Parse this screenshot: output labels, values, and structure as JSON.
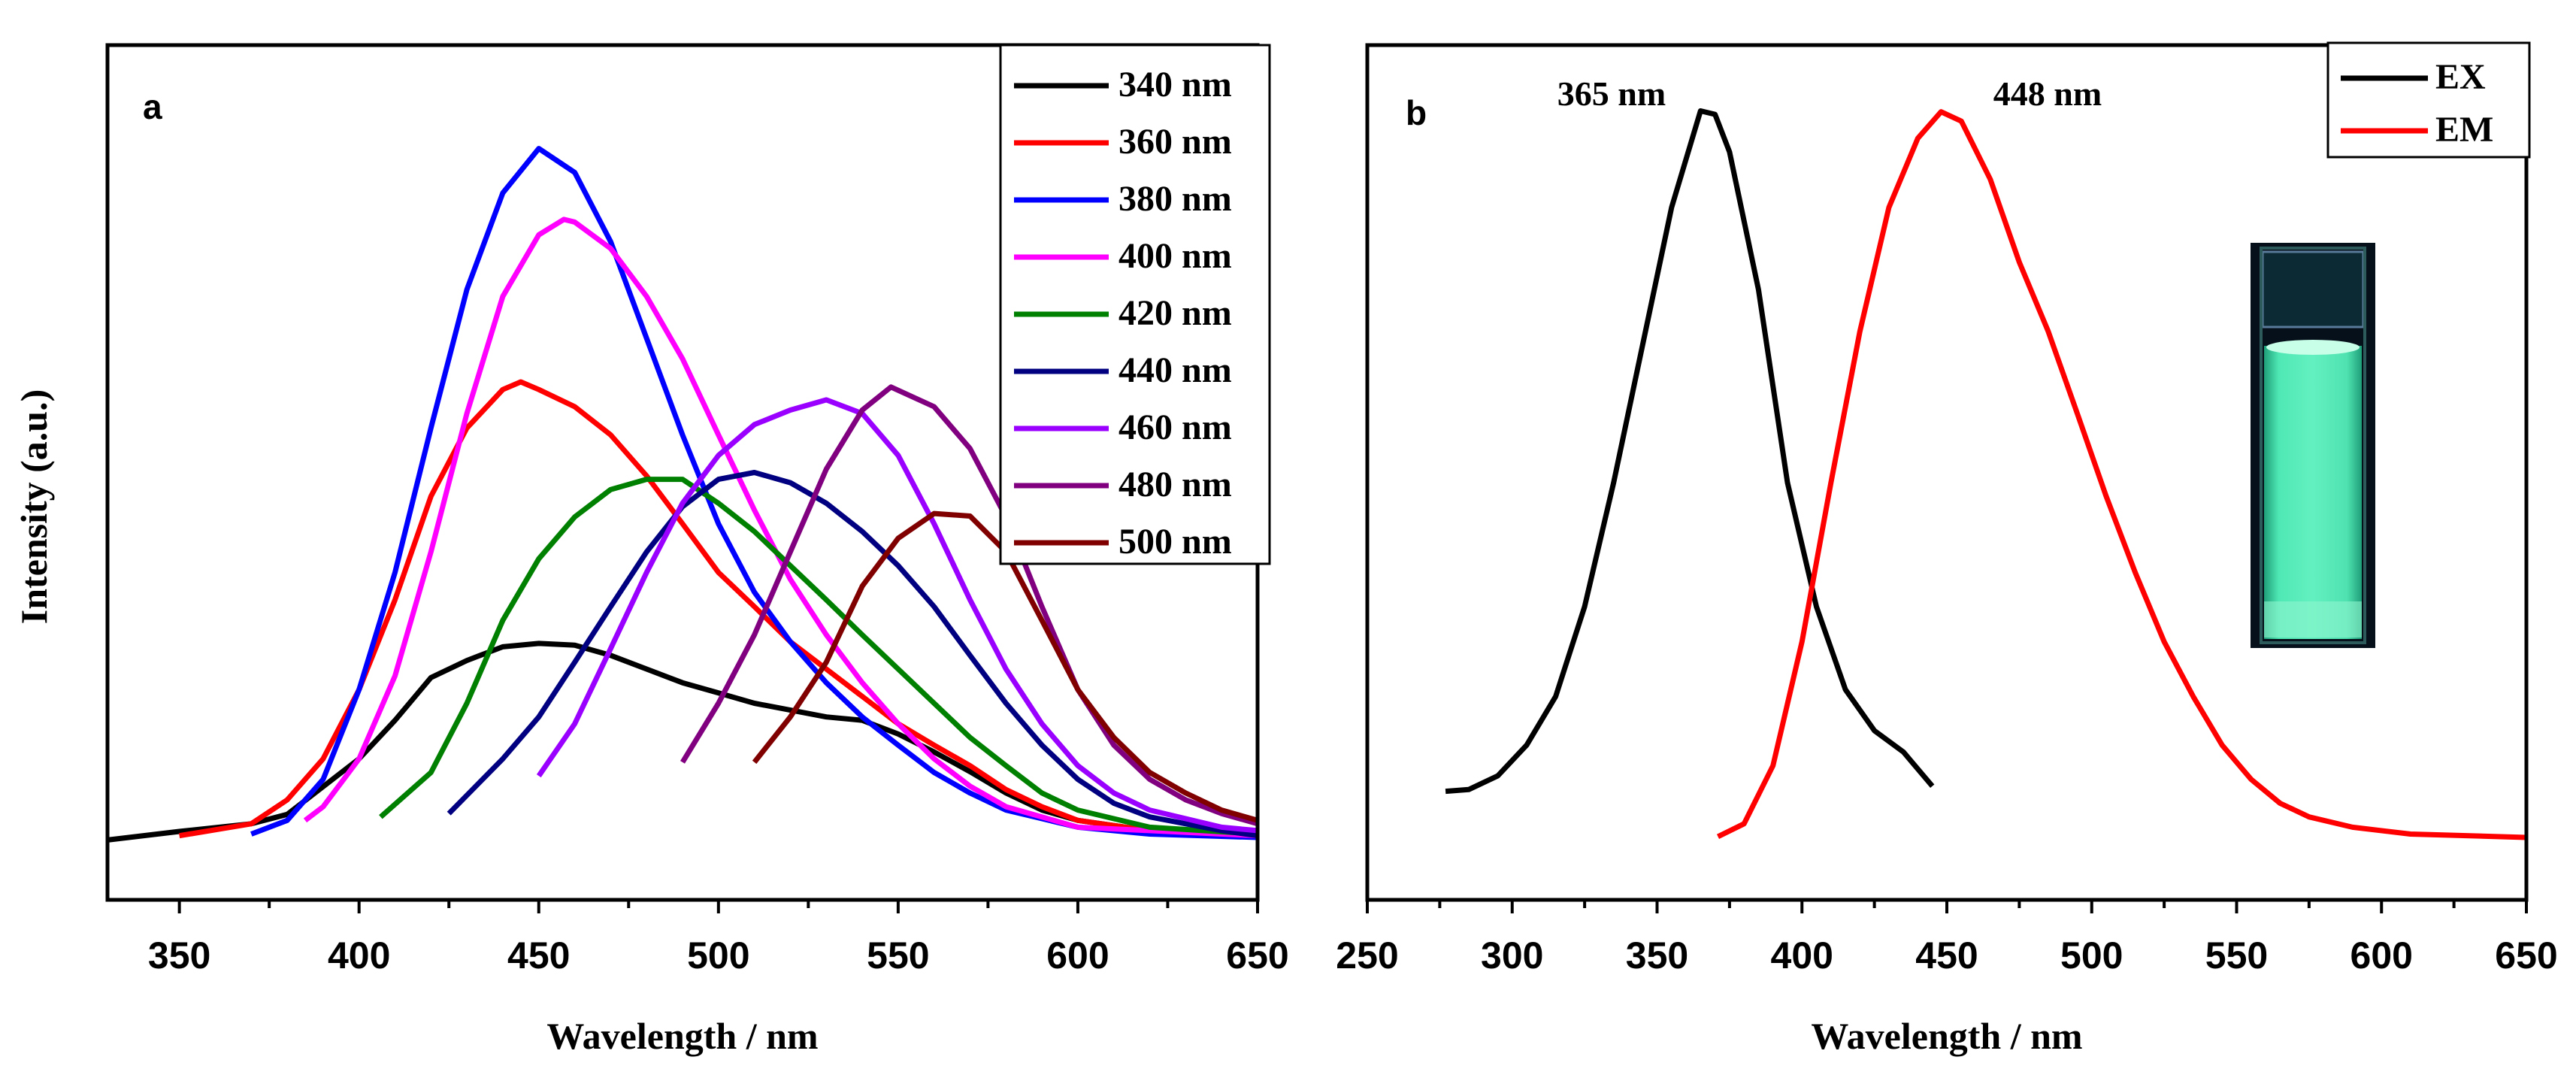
{
  "chart_data": [
    {
      "type": "line",
      "panel_label": "a",
      "xlabel": "Wavelength / nm",
      "ylabel": "Intensity (a.u.)",
      "xlim": [
        330,
        650
      ],
      "ylim": [
        0,
        1
      ],
      "xticks": [
        350,
        400,
        450,
        500,
        550,
        600,
        650
      ],
      "legend_position": "top-right",
      "series": [
        {
          "name": "340 nm",
          "color": "#000000",
          "x": [
            330,
            350,
            370,
            380,
            400,
            410,
            420,
            430,
            440,
            450,
            460,
            470,
            480,
            490,
            500,
            510,
            520,
            530,
            540,
            550,
            560,
            570,
            580,
            590,
            600,
            620,
            640,
            650
          ],
          "y": [
            0.07,
            0.08,
            0.089,
            0.1,
            0.165,
            0.21,
            0.26,
            0.28,
            0.296,
            0.3,
            0.298,
            0.286,
            0.27,
            0.254,
            0.242,
            0.23,
            0.222,
            0.214,
            0.21,
            0.194,
            0.173,
            0.15,
            0.125,
            0.105,
            0.093,
            0.081,
            0.077,
            0.075
          ]
        },
        {
          "name": "360 nm",
          "color": "#ff0000",
          "x": [
            350,
            370,
            380,
            390,
            400,
            410,
            420,
            430,
            440,
            445,
            450,
            460,
            470,
            480,
            490,
            500,
            510,
            520,
            530,
            540,
            550,
            560,
            570,
            580,
            590,
            600,
            620,
            650
          ],
          "y": [
            0.075,
            0.089,
            0.117,
            0.165,
            0.246,
            0.351,
            0.472,
            0.552,
            0.597,
            0.606,
            0.597,
            0.577,
            0.544,
            0.496,
            0.44,
            0.383,
            0.343,
            0.302,
            0.27,
            0.238,
            0.206,
            0.181,
            0.157,
            0.129,
            0.109,
            0.093,
            0.081,
            0.075
          ]
        },
        {
          "name": "380 nm",
          "color": "#0000ff",
          "x": [
            370,
            380,
            390,
            400,
            410,
            420,
            430,
            440,
            450,
            460,
            470,
            480,
            490,
            500,
            510,
            520,
            530,
            540,
            550,
            560,
            570,
            580,
            600,
            620,
            650
          ],
          "y": [
            0.077,
            0.093,
            0.141,
            0.246,
            0.383,
            0.552,
            0.714,
            0.827,
            0.879,
            0.851,
            0.77,
            0.657,
            0.544,
            0.44,
            0.36,
            0.302,
            0.254,
            0.214,
            0.181,
            0.149,
            0.125,
            0.105,
            0.085,
            0.077,
            0.073
          ]
        },
        {
          "name": "400 nm",
          "color": "#ff00ff",
          "x": [
            385,
            390,
            400,
            410,
            420,
            430,
            440,
            450,
            457,
            460,
            470,
            480,
            490,
            500,
            510,
            520,
            530,
            540,
            550,
            560,
            570,
            580,
            600,
            650
          ],
          "y": [
            0.093,
            0.109,
            0.165,
            0.262,
            0.407,
            0.569,
            0.706,
            0.778,
            0.796,
            0.793,
            0.762,
            0.706,
            0.633,
            0.544,
            0.456,
            0.375,
            0.31,
            0.254,
            0.206,
            0.165,
            0.133,
            0.109,
            0.085,
            0.075
          ]
        },
        {
          "name": "420 nm",
          "color": "#008000",
          "x": [
            406,
            420,
            430,
            440,
            450,
            460,
            470,
            480,
            490,
            500,
            510,
            520,
            530,
            540,
            550,
            560,
            570,
            580,
            590,
            600,
            620,
            650
          ],
          "y": [
            0.097,
            0.149,
            0.23,
            0.327,
            0.399,
            0.448,
            0.48,
            0.492,
            0.492,
            0.464,
            0.431,
            0.391,
            0.351,
            0.31,
            0.27,
            0.23,
            0.19,
            0.157,
            0.125,
            0.105,
            0.085,
            0.077
          ]
        },
        {
          "name": "440 nm",
          "color": "#000080",
          "x": [
            425,
            440,
            450,
            460,
            470,
            480,
            490,
            500,
            510,
            520,
            530,
            540,
            550,
            560,
            570,
            580,
            590,
            600,
            610,
            620,
            640,
            650
          ],
          "y": [
            0.101,
            0.165,
            0.214,
            0.278,
            0.343,
            0.407,
            0.46,
            0.492,
            0.5,
            0.488,
            0.464,
            0.431,
            0.391,
            0.343,
            0.286,
            0.23,
            0.181,
            0.141,
            0.113,
            0.097,
            0.081,
            0.075
          ]
        },
        {
          "name": "460 nm",
          "color": "#9900ff",
          "x": [
            450,
            460,
            470,
            480,
            490,
            500,
            510,
            520,
            530,
            540,
            550,
            560,
            570,
            580,
            590,
            600,
            610,
            620,
            640,
            650
          ],
          "y": [
            0.145,
            0.206,
            0.294,
            0.383,
            0.464,
            0.52,
            0.556,
            0.573,
            0.585,
            0.569,
            0.52,
            0.44,
            0.351,
            0.27,
            0.206,
            0.157,
            0.125,
            0.105,
            0.085,
            0.081
          ]
        },
        {
          "name": "480 nm",
          "color": "#800080",
          "x": [
            490,
            500,
            510,
            520,
            530,
            540,
            548,
            560,
            570,
            580,
            590,
            600,
            610,
            620,
            630,
            640,
            650
          ],
          "y": [
            0.161,
            0.23,
            0.31,
            0.407,
            0.504,
            0.573,
            0.6,
            0.577,
            0.528,
            0.448,
            0.343,
            0.246,
            0.181,
            0.141,
            0.117,
            0.101,
            0.089
          ]
        },
        {
          "name": "500 nm",
          "color": "#800000",
          "x": [
            510,
            520,
            530,
            540,
            550,
            560,
            570,
            580,
            590,
            600,
            610,
            620,
            630,
            640,
            650
          ],
          "y": [
            0.161,
            0.214,
            0.278,
            0.367,
            0.423,
            0.452,
            0.449,
            0.407,
            0.327,
            0.246,
            0.19,
            0.149,
            0.125,
            0.105,
            0.093
          ]
        }
      ]
    },
    {
      "type": "line",
      "panel_label": "b",
      "xlabel": "Wavelength / nm",
      "ylabel": "",
      "xlim": [
        250,
        650
      ],
      "ylim": [
        0,
        1
      ],
      "xticks": [
        250,
        300,
        350,
        400,
        450,
        500,
        550,
        600,
        650
      ],
      "legend_position": "top-right",
      "annotations": [
        "365 nm",
        "448 nm"
      ],
      "series": [
        {
          "name": "EX",
          "color": "#000000",
          "x": [
            277,
            285,
            295,
            305,
            315,
            325,
            335,
            345,
            355,
            365,
            370,
            375,
            385,
            395,
            405,
            415,
            425,
            435,
            445
          ],
          "y": [
            0.127,
            0.129,
            0.145,
            0.181,
            0.238,
            0.343,
            0.488,
            0.649,
            0.81,
            0.923,
            0.919,
            0.875,
            0.714,
            0.488,
            0.343,
            0.246,
            0.198,
            0.173,
            0.133
          ]
        },
        {
          "name": "EM",
          "color": "#ff0000",
          "x": [
            371,
            380,
            390,
            400,
            410,
            420,
            430,
            440,
            448,
            455,
            465,
            475,
            485,
            495,
            505,
            515,
            525,
            535,
            545,
            555,
            565,
            575,
            590,
            610,
            650
          ],
          "y": [
            0.074,
            0.089,
            0.157,
            0.302,
            0.488,
            0.665,
            0.81,
            0.891,
            0.922,
            0.911,
            0.843,
            0.746,
            0.665,
            0.569,
            0.472,
            0.383,
            0.302,
            0.238,
            0.181,
            0.141,
            0.113,
            0.097,
            0.085,
            0.077,
            0.073
          ]
        }
      ]
    }
  ]
}
